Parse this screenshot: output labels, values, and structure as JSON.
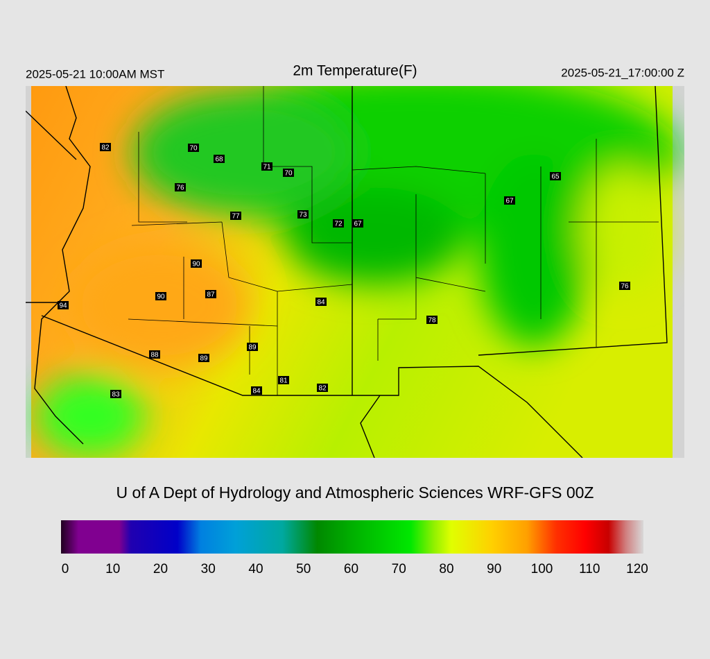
{
  "header": {
    "left": "2025-05-21 10:00AM MST",
    "title": "2m Temperature(F)",
    "right": "2025-05-21_17:00:00 Z"
  },
  "stations": [
    82,
    70,
    68,
    71,
    70,
    76,
    77,
    73,
    72,
    67,
    65,
    67,
    90,
    90,
    87,
    84,
    94,
    76,
    78,
    89,
    88,
    89,
    81,
    82,
    84,
    83
  ],
  "credit": "U of A Dept of Hydrology and Atmospheric Sciences WRF-GFS 00Z",
  "colorbar": {
    "ticks": [
      0,
      10,
      20,
      30,
      40,
      50,
      60,
      70,
      80,
      90,
      100,
      110,
      120
    ]
  }
}
